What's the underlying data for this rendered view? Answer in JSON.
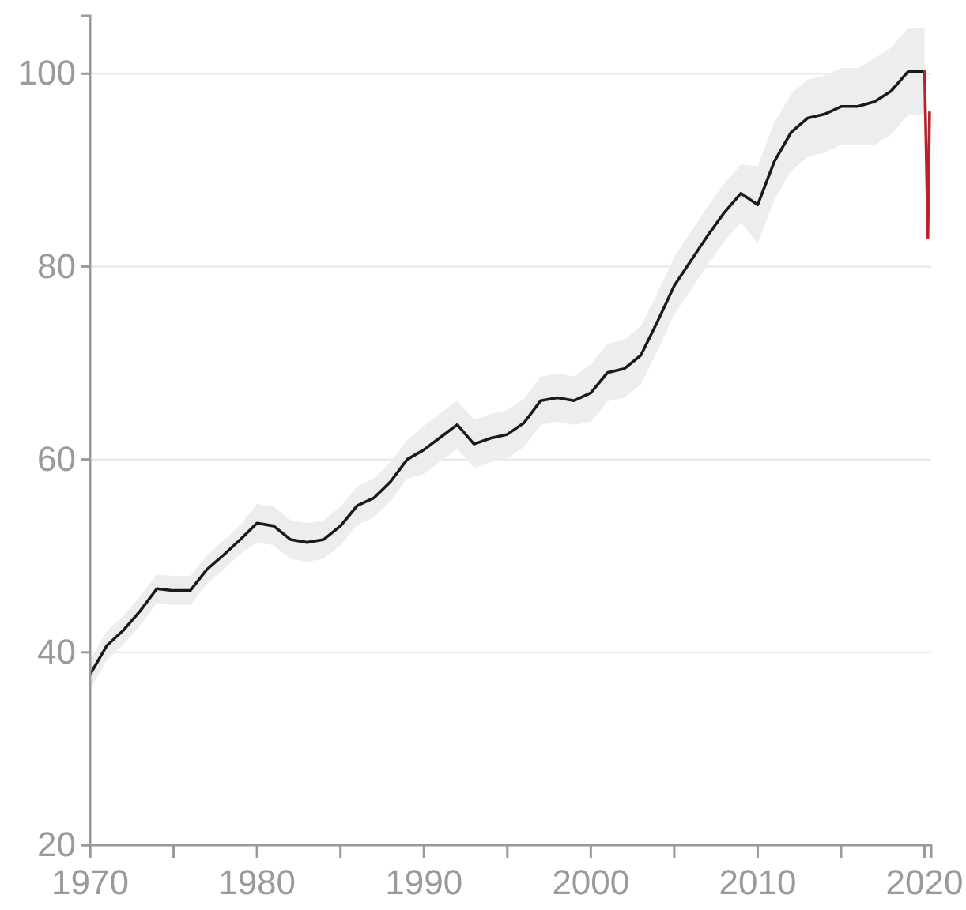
{
  "chart_data": {
    "type": "line",
    "xlim": [
      1970,
      2020.4
    ],
    "ylim": [
      20,
      106
    ],
    "xticks": [
      1970,
      {
        "value": 1975,
        "label": null
      },
      1980,
      {
        "value": 1985,
        "label": null
      },
      1990,
      {
        "value": 1995,
        "label": null
      },
      2000,
      {
        "value": 2005,
        "label": null
      },
      2010,
      {
        "value": 2015,
        "label": null
      },
      2020
    ],
    "yticks": [
      20,
      40,
      60,
      80,
      100
    ],
    "grid": "y",
    "line_style": "solid",
    "series": [
      {
        "color": "#1a1a1a",
        "x": [
          1970,
          1971,
          1972,
          1973,
          1974,
          1975,
          1976,
          1977,
          1978,
          1979,
          1980,
          1981,
          1982,
          1983,
          1984,
          1985,
          1986,
          1987,
          1988,
          1989,
          1990,
          1991,
          1992,
          1993,
          1994,
          1995,
          1996,
          1997,
          1998,
          1999,
          2000,
          2001,
          2002,
          2003,
          2004,
          2005,
          2006,
          2007,
          2008,
          2009,
          2010,
          2011,
          2012,
          2013,
          2014,
          2015,
          2016,
          2017,
          2018,
          2019,
          2020
        ],
        "values": [
          37.7,
          40.7,
          42.3,
          44.3,
          46.6,
          46.4,
          46.4,
          48.6,
          50.1,
          51.7,
          53.4,
          53.1,
          51.7,
          51.4,
          51.7,
          53.1,
          55.2,
          56.0,
          57.7,
          60.0,
          61.0,
          62.3,
          63.6,
          61.6,
          62.2,
          62.6,
          63.8,
          66.1,
          66.4,
          66.1,
          66.9,
          69.0,
          69.4,
          70.8,
          74.3,
          78.0,
          80.6,
          83.2,
          85.6,
          87.6,
          86.4,
          90.9,
          93.9,
          95.4,
          95.8,
          96.6,
          96.6,
          97.1,
          98.2,
          100.2,
          100.2
        ],
        "lower": [
          36.2,
          39.2,
          40.8,
          42.8,
          45.1,
          44.9,
          44.9,
          47.1,
          48.6,
          50.2,
          51.4,
          51.1,
          49.7,
          49.4,
          49.7,
          51.1,
          53.2,
          54.0,
          55.7,
          58.0,
          58.5,
          59.8,
          61.1,
          59.1,
          59.7,
          60.1,
          61.3,
          63.6,
          63.9,
          63.6,
          63.9,
          66.0,
          66.4,
          67.8,
          71.3,
          75.0,
          77.6,
          80.2,
          82.6,
          84.6,
          82.4,
          86.9,
          89.9,
          91.4,
          91.8,
          92.6,
          92.6,
          92.6,
          93.7,
          95.7,
          95.7
        ],
        "upper": [
          39.2,
          42.2,
          43.8,
          45.8,
          48.1,
          47.9,
          47.9,
          50.1,
          51.6,
          53.2,
          55.4,
          55.1,
          53.7,
          53.4,
          53.7,
          55.1,
          57.2,
          58.0,
          59.7,
          62.0,
          63.5,
          64.8,
          66.1,
          64.1,
          64.7,
          65.1,
          66.3,
          68.6,
          68.9,
          68.6,
          69.9,
          72.0,
          72.4,
          73.8,
          77.3,
          81.0,
          83.6,
          86.2,
          88.6,
          90.6,
          90.4,
          94.9,
          97.9,
          99.4,
          99.8,
          100.6,
          100.6,
          101.6,
          102.7,
          104.7,
          104.7
        ]
      },
      {
        "color": "#b8232a",
        "x": [
          2020,
          2020.1,
          2020.2,
          2020.3
        ],
        "values": [
          100.2,
          92,
          83,
          96
        ]
      }
    ]
  }
}
